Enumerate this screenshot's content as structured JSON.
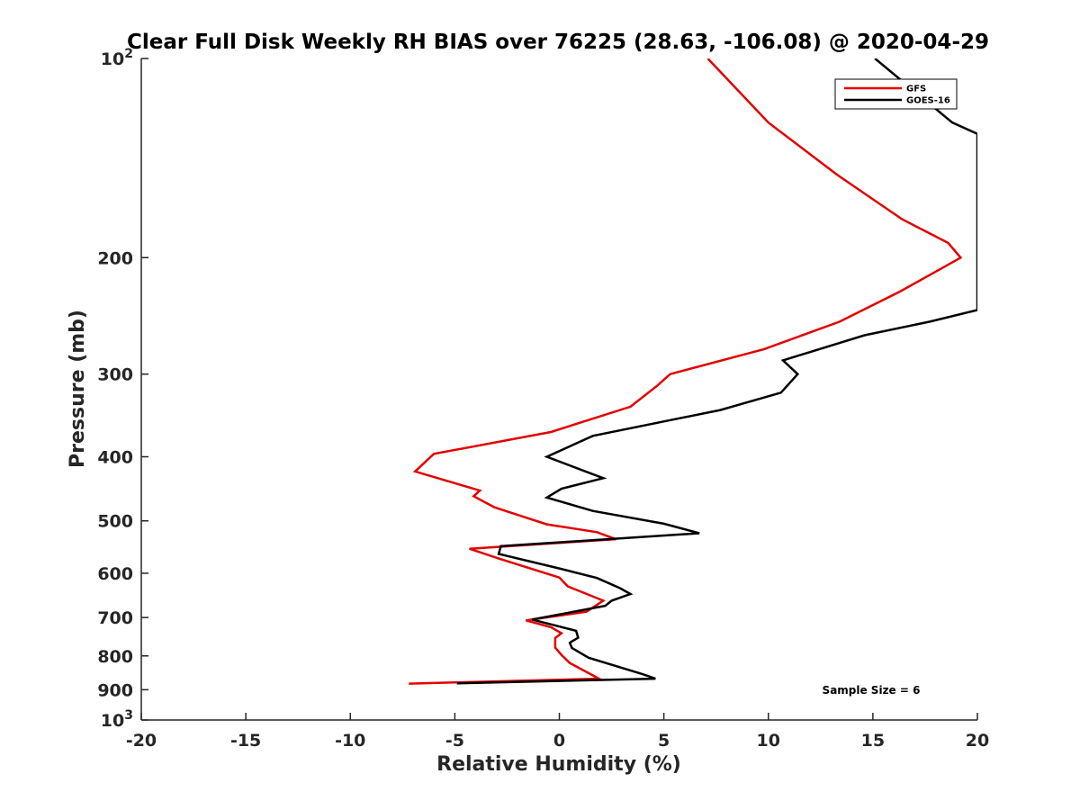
{
  "chart_data": {
    "type": "line",
    "title": "Clear Full Disk Weekly RH BIAS over 76225 (28.63, -106.08) @ 2020-04-29",
    "xlabel": "Relative Humidity (%)",
    "ylabel": "Pressure (mb)",
    "xlim": [
      -20,
      20
    ],
    "ylim": [
      100,
      1000
    ],
    "y_scale": "log",
    "y_reversed": true,
    "grid": false,
    "legend_position": "top-right",
    "x_ticks": [
      -20,
      -15,
      -10,
      -5,
      0,
      5,
      10,
      15,
      20
    ],
    "x_tick_labels": [
      "-20",
      "-15",
      "-10",
      "-5",
      "0",
      "5",
      "10",
      "15",
      "20"
    ],
    "y_ticks": [
      100,
      200,
      300,
      400,
      500,
      600,
      700,
      800,
      900,
      1000
    ],
    "y_tick_labels": [
      "10²",
      "200",
      "300",
      "400",
      "500",
      "600",
      "700",
      "800",
      "900",
      "10³"
    ],
    "annotation": "Sample Size = 6",
    "series": [
      {
        "name": "GFS",
        "color": "#e30000",
        "points": [
          [
            7.1,
            100
          ],
          [
            10.0,
            125
          ],
          [
            13.3,
            150
          ],
          [
            16.4,
            175
          ],
          [
            18.6,
            190
          ],
          [
            19.2,
            200
          ],
          [
            16.3,
            225
          ],
          [
            13.4,
            250
          ],
          [
            9.8,
            275
          ],
          [
            5.3,
            300
          ],
          [
            4.7,
            312
          ],
          [
            3.4,
            336
          ],
          [
            -0.4,
            367
          ],
          [
            -6.0,
            396
          ],
          [
            -6.9,
            421
          ],
          [
            -3.8,
            450
          ],
          [
            -4.1,
            459
          ],
          [
            -3.1,
            477
          ],
          [
            -1.8,
            492
          ],
          [
            -0.6,
            506
          ],
          [
            1.8,
            520
          ],
          [
            2.7,
            533
          ],
          [
            -4.3,
            551
          ],
          [
            -2.9,
            570
          ],
          [
            0.0,
            609
          ],
          [
            0.4,
            628
          ],
          [
            2.1,
            660
          ],
          [
            1.3,
            686
          ],
          [
            -1.6,
            707
          ],
          [
            -0.4,
            724
          ],
          [
            0.1,
            739
          ],
          [
            -0.2,
            752
          ],
          [
            -0.2,
            777
          ],
          [
            0.1,
            797
          ],
          [
            0.5,
            820
          ],
          [
            1.9,
            866
          ],
          [
            -7.2,
            881
          ]
        ]
      },
      {
        "name": "GOES-16",
        "color": "#000000",
        "points": [
          [
            15.1,
            100
          ],
          [
            18.8,
            125
          ],
          [
            20.0,
            130
          ],
          [
            20.0,
            240
          ],
          [
            17.7,
            250
          ],
          [
            14.6,
            262
          ],
          [
            10.7,
            286
          ],
          [
            11.4,
            300
          ],
          [
            10.6,
            320
          ],
          [
            7.7,
            340
          ],
          [
            1.6,
            372
          ],
          [
            -0.6,
            400
          ],
          [
            2.1,
            431
          ],
          [
            0.1,
            447
          ],
          [
            -0.6,
            461
          ],
          [
            1.6,
            483
          ],
          [
            5.0,
            505
          ],
          [
            6.7,
            522
          ],
          [
            -2.8,
            546
          ],
          [
            -2.9,
            561
          ],
          [
            0.0,
            590
          ],
          [
            1.8,
            610
          ],
          [
            2.9,
            632
          ],
          [
            3.4,
            645
          ],
          [
            2.5,
            660
          ],
          [
            2.2,
            672
          ],
          [
            -1.3,
            705
          ],
          [
            0.8,
            733
          ],
          [
            0.9,
            751
          ],
          [
            0.5,
            764
          ],
          [
            0.6,
            778
          ],
          [
            1.4,
            805
          ],
          [
            4.0,
            853
          ],
          [
            4.6,
            866
          ],
          [
            -4.9,
            880
          ]
        ]
      }
    ]
  }
}
